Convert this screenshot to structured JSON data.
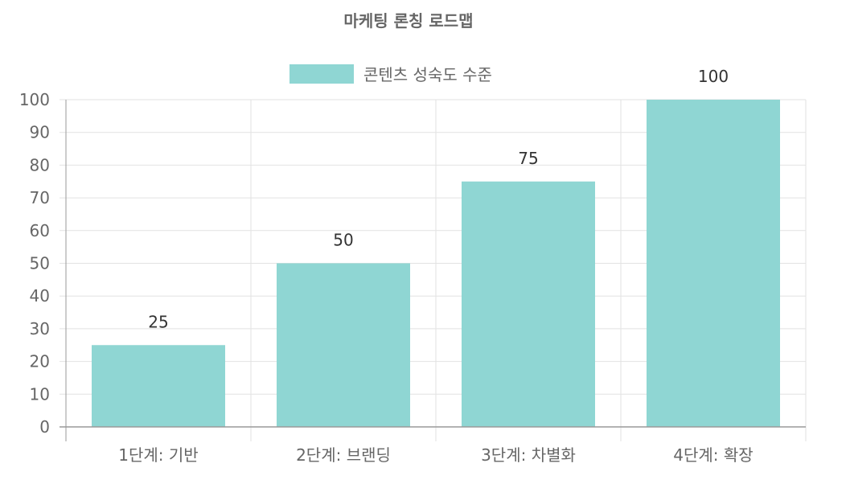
{
  "chart_data": {
    "type": "bar",
    "title": "마케팅 론칭 로드맵",
    "categories": [
      "1단계: 기반",
      "2단계: 브랜딩",
      "3단계: 차별화",
      "4단계: 확장"
    ],
    "series": [
      {
        "name": "콘텐츠 성숙도 수준",
        "values": [
          25,
          50,
          75,
          100
        ]
      }
    ],
    "ylim": [
      0,
      100
    ],
    "yticks": [
      0,
      10,
      20,
      30,
      40,
      50,
      60,
      70,
      80,
      90,
      100
    ],
    "grid": true,
    "legend_position": "top",
    "data_labels": true,
    "colors": {
      "bar_fill": "#8fd6d3",
      "grid": "#e2e2e2",
      "axis": "#9a9a9a",
      "text": "#666666",
      "title": "#666666",
      "value_label": "#333333"
    }
  }
}
